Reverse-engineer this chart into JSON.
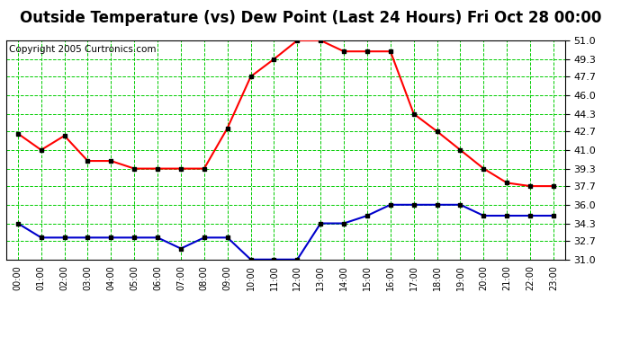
{
  "title": "Outside Temperature (vs) Dew Point (Last 24 Hours) Fri Oct 28 00:00",
  "copyright": "Copyright 2005 Curtronics.com",
  "x_labels": [
    "00:00",
    "01:00",
    "02:00",
    "03:00",
    "04:00",
    "05:00",
    "06:00",
    "07:00",
    "08:00",
    "09:00",
    "10:00",
    "11:00",
    "12:00",
    "13:00",
    "14:00",
    "15:00",
    "16:00",
    "17:00",
    "18:00",
    "19:00",
    "20:00",
    "21:00",
    "22:00",
    "23:00"
  ],
  "temp_data": [
    42.5,
    41.0,
    42.3,
    40.0,
    40.0,
    39.3,
    39.3,
    39.3,
    39.3,
    43.0,
    47.7,
    49.3,
    51.0,
    51.0,
    50.0,
    50.0,
    50.0,
    44.3,
    42.7,
    41.0,
    39.3,
    38.0,
    37.7,
    37.7
  ],
  "dew_data": [
    34.3,
    33.0,
    33.0,
    33.0,
    33.0,
    33.0,
    33.0,
    32.0,
    33.0,
    33.0,
    31.0,
    31.0,
    31.0,
    34.3,
    34.3,
    35.0,
    36.0,
    36.0,
    36.0,
    36.0,
    35.0,
    35.0,
    35.0,
    35.0
  ],
  "temp_color": "#ff0000",
  "dew_color": "#0000cc",
  "bg_color": "#ffffff",
  "grid_color": "#00cc00",
  "title_fontsize": 12,
  "copyright_fontsize": 7.5,
  "ylim": [
    31.0,
    51.0
  ],
  "yticks": [
    31.0,
    32.7,
    34.3,
    36.0,
    37.7,
    39.3,
    41.0,
    42.7,
    44.3,
    46.0,
    47.7,
    49.3,
    51.0
  ],
  "markersize": 3,
  "linewidth": 1.5
}
